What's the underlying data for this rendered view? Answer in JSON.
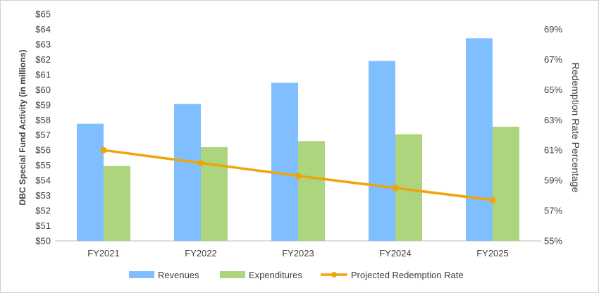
{
  "chart_data": {
    "type": "bar",
    "categories": [
      "FY2021",
      "FY2022",
      "FY2023",
      "FY2024",
      "FY2025"
    ],
    "series": [
      {
        "name": "Revenues",
        "kind": "bar",
        "axis": "left",
        "color": "#7fbfff",
        "values": [
          57.75,
          59.05,
          60.45,
          61.9,
          63.4
        ]
      },
      {
        "name": "Expenditures",
        "kind": "bar",
        "axis": "left",
        "color": "#acd57d",
        "values": [
          54.95,
          56.2,
          56.6,
          57.05,
          57.55
        ]
      },
      {
        "name": "Projected Redemption Rate",
        "kind": "line",
        "axis": "right",
        "color": "#f0a30a",
        "values": [
          61.0,
          60.15,
          59.3,
          58.5,
          57.7
        ]
      }
    ],
    "ylabel": "DBC Special Fund Activity (in millions)",
    "y2label": "Redemption  Rate Percentage",
    "ylim": [
      50,
      65
    ],
    "y_ticks": [
      "$50",
      "$51",
      "$52",
      "$53",
      "$54",
      "$55",
      "$56",
      "$57",
      "$58",
      "$59",
      "$60",
      "$61",
      "$62",
      "$63",
      "$64",
      "$65"
    ],
    "y2lim": [
      55,
      70
    ],
    "y2_ticks": [
      "55%",
      "57%",
      "59%",
      "61%",
      "63%",
      "65%",
      "67%",
      "69%"
    ],
    "grid": false,
    "legend_position": "bottom"
  }
}
